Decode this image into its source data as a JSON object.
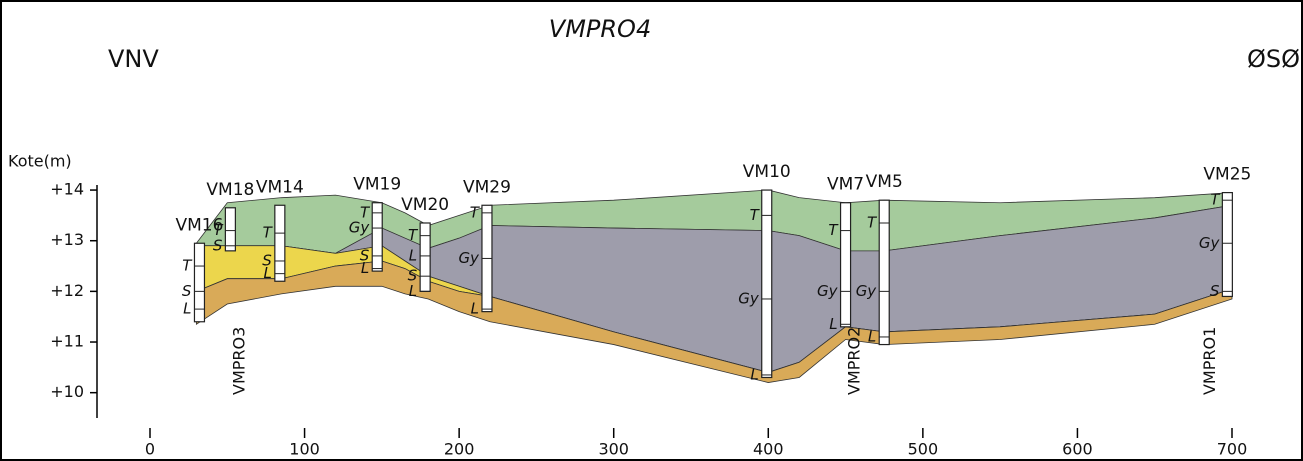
{
  "chart_data": {
    "type": "cross-section",
    "title": "VMPRO4",
    "left_label": "VNV",
    "right_label": "ØSØ",
    "y_label": "Kote(m)",
    "xlim": [
      0,
      700
    ],
    "xticks": [
      0,
      100,
      200,
      300,
      400,
      500,
      600,
      700
    ],
    "ylim": [
      9.5,
      14.1
    ],
    "yticks": [
      {
        "value": 10,
        "label": "+10"
      },
      {
        "value": 11,
        "label": "+11"
      },
      {
        "value": 12,
        "label": "+12"
      },
      {
        "value": 13,
        "label": "+13"
      },
      {
        "value": 14,
        "label": "+14"
      }
    ],
    "x": [
      30,
      50,
      85,
      120,
      150,
      165,
      180,
      200,
      220,
      300,
      400,
      420,
      450,
      475,
      550,
      650,
      700
    ],
    "surfaces": [
      [
        12.95,
        13.75,
        13.85,
        13.9,
        13.75,
        13.55,
        13.3,
        13.5,
        13.7,
        13.8,
        14.0,
        13.85,
        13.75,
        13.8,
        13.75,
        13.85,
        13.95
      ],
      [
        12.9,
        12.9,
        12.9,
        12.75,
        13.25,
        13.05,
        12.85,
        13.05,
        13.3,
        13.25,
        13.2,
        13.1,
        12.8,
        12.8,
        13.1,
        13.45,
        13.7
      ],
      [
        12.9,
        12.9,
        12.9,
        12.75,
        12.9,
        12.6,
        12.3,
        12.1,
        11.9,
        11.2,
        10.4,
        10.6,
        11.3,
        11.2,
        11.3,
        11.55,
        12.05
      ],
      [
        12.0,
        12.25,
        12.25,
        12.5,
        12.6,
        12.45,
        12.2,
        12.0,
        11.9,
        11.2,
        10.4,
        10.6,
        11.3,
        11.2,
        11.3,
        11.55,
        12.05
      ],
      [
        11.35,
        11.75,
        11.95,
        12.1,
        12.1,
        11.95,
        11.85,
        11.6,
        11.4,
        10.95,
        10.2,
        10.3,
        11.05,
        10.95,
        11.05,
        11.35,
        11.85
      ]
    ],
    "layer_colors": [
      "#a5cb9c",
      "#9e9dab",
      "#ecd64c",
      "#d9aa58"
    ],
    "boreholes": [
      {
        "name": "VM16",
        "x": 32,
        "top": 12.95,
        "bottom": 11.4,
        "labels": [
          {
            "text": "T",
            "value": 12.5
          },
          {
            "text": "S",
            "value": 12.0
          },
          {
            "text": "L",
            "value": 11.65
          }
        ]
      },
      {
        "name": "VM18",
        "x": 52,
        "top": 13.65,
        "bottom": 12.8,
        "labels": [
          {
            "text": "T",
            "value": 13.2
          },
          {
            "text": "S",
            "value": 12.9
          }
        ]
      },
      {
        "name": "VM14",
        "x": 84,
        "top": 13.7,
        "bottom": 12.2,
        "labels": [
          {
            "text": "T",
            "value": 13.15
          },
          {
            "text": "S",
            "value": 12.6
          },
          {
            "text": "L",
            "value": 12.35
          }
        ]
      },
      {
        "name": "VM19",
        "x": 147,
        "top": 13.75,
        "bottom": 12.4,
        "labels": [
          {
            "text": "T",
            "value": 13.55
          },
          {
            "text": "Gy",
            "value": 13.25
          },
          {
            "text": "S",
            "value": 12.7
          },
          {
            "text": "L",
            "value": 12.45
          }
        ]
      },
      {
        "name": "VM20",
        "x": 178,
        "top": 13.35,
        "bottom": 12.0,
        "labels": [
          {
            "text": "T",
            "value": 13.1
          },
          {
            "text": "L",
            "value": 12.7
          },
          {
            "text": "S",
            "value": 12.3
          },
          {
            "text": "L",
            "value": 12.0
          }
        ]
      },
      {
        "name": "VM29",
        "x": 218,
        "top": 13.7,
        "bottom": 11.6,
        "labels": [
          {
            "text": "T",
            "value": 13.55
          },
          {
            "text": "Gy",
            "value": 12.65
          },
          {
            "text": "L",
            "value": 11.65
          }
        ]
      },
      {
        "name": "VM10",
        "x": 399,
        "top": 14.0,
        "bottom": 10.3,
        "labels": [
          {
            "text": "T",
            "value": 13.5
          },
          {
            "text": "Gy",
            "value": 11.85
          },
          {
            "text": "L",
            "value": 10.35
          }
        ]
      },
      {
        "name": "VM7",
        "x": 450,
        "top": 13.75,
        "bottom": 11.3,
        "labels": [
          {
            "text": "T",
            "value": 13.2
          },
          {
            "text": "Gy",
            "value": 12.0
          },
          {
            "text": "L",
            "value": 11.35
          }
        ]
      },
      {
        "name": "VM5",
        "x": 475,
        "top": 13.8,
        "bottom": 10.95,
        "labels": [
          {
            "text": "T",
            "value": 13.35
          },
          {
            "text": "Gy",
            "value": 12.0
          },
          {
            "text": "L",
            "value": 11.1
          }
        ]
      },
      {
        "name": "VM25",
        "x": 697,
        "top": 13.95,
        "bottom": 11.9,
        "labels": [
          {
            "text": "T",
            "value": 13.8
          },
          {
            "text": "Gy",
            "value": 12.95
          },
          {
            "text": "S",
            "value": 12.0
          }
        ]
      }
    ],
    "profiles": [
      {
        "name": "VMPRO3",
        "x": 62
      },
      {
        "name": "VMPRO2",
        "x": 460
      },
      {
        "name": "VMPRO1",
        "x": 690
      }
    ]
  }
}
